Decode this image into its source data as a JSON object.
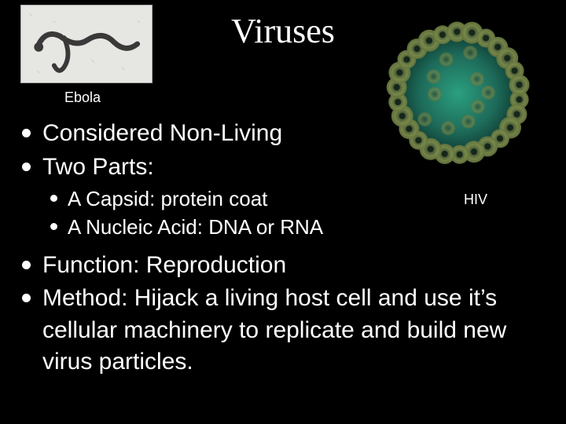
{
  "title": "Viruses",
  "ebola": {
    "caption": "Ebola",
    "bg_color": "#e6e6e2",
    "filament_color": "#3a3838"
  },
  "hiv": {
    "caption": "HIV",
    "core_color": "#1e6b5a",
    "spike_outer": "#7a8a4a",
    "spike_inner": "#2a3a2a",
    "glow_color": "#0a3a30"
  },
  "bullets": {
    "b1": "Considered Non-Living",
    "b2": "Two Parts:",
    "b2a": "A Capsid: protein coat",
    "b2b": "A Nucleic Acid: DNA or RNA",
    "b3": "Function: Reproduction",
    "b4": "Method: Hijack a living host cell and use it’s cellular machinery to replicate and build new virus particles."
  },
  "style": {
    "bg": "#000000",
    "text_color": "#ffffff",
    "title_font": "Times New Roman",
    "title_size_pt": 33,
    "body_font": "Arial",
    "lvl1_size_pt": 22,
    "lvl2_size_pt": 19
  }
}
